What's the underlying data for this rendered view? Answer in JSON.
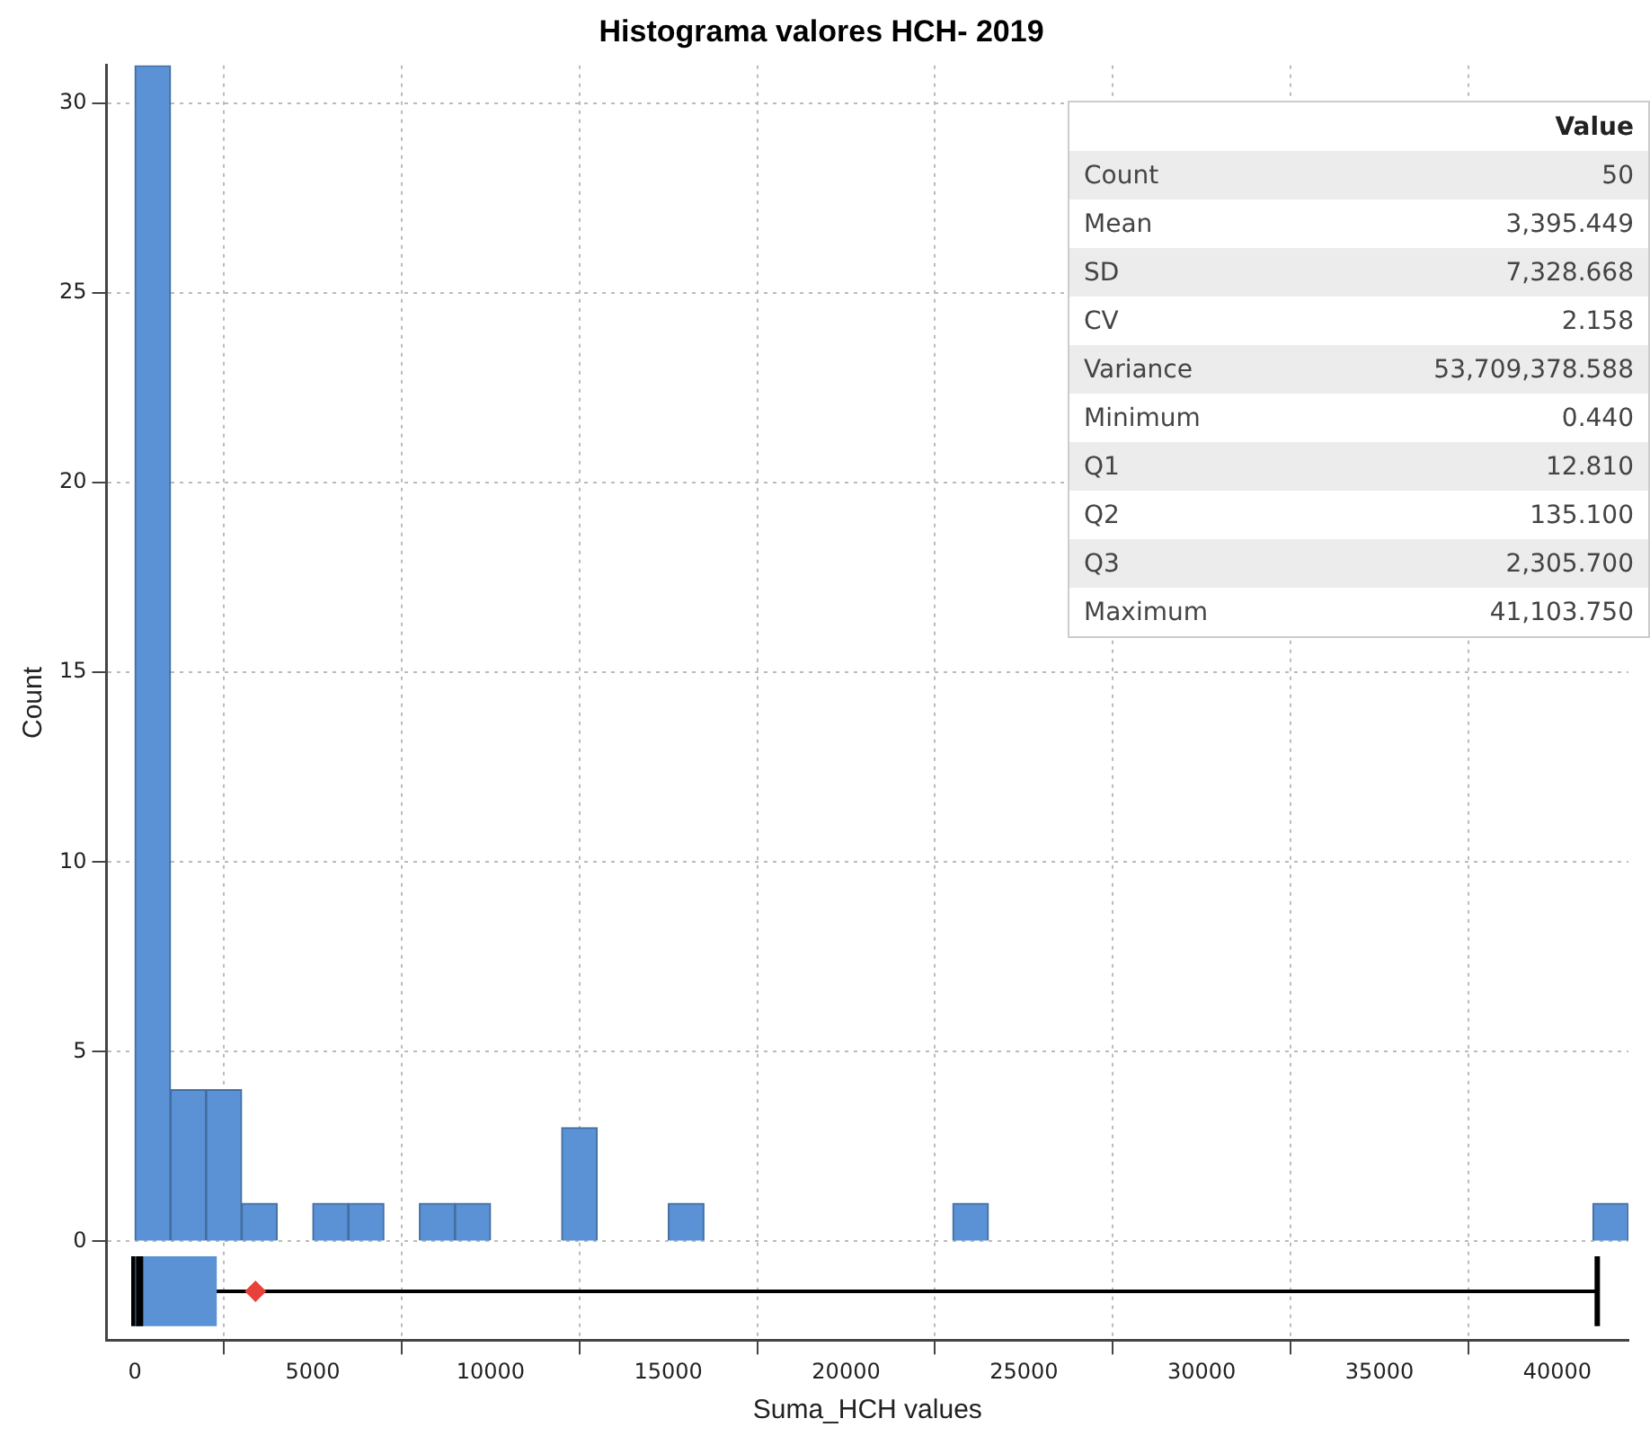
{
  "chart_data": {
    "type": "histogram",
    "title": "Histograma valores HCH- 2019",
    "xlabel": "Suma_HCH values",
    "ylabel": "Count",
    "color": "#5b92d6",
    "bins": [
      0,
      1000,
      2000,
      3000,
      4000,
      5000,
      6000,
      7000,
      8000,
      9000,
      10000,
      11000,
      12000,
      13000,
      14000,
      15000,
      16000,
      17000,
      18000,
      19000,
      20000,
      21000,
      22000,
      23000,
      24000,
      25000,
      26000,
      27000,
      28000,
      29000,
      30000,
      31000,
      32000,
      33000,
      34000,
      35000,
      36000,
      37000,
      38000,
      39000,
      40000,
      41000,
      42000
    ],
    "values": [
      31,
      4,
      4,
      1,
      0,
      1,
      1,
      0,
      1,
      1,
      0,
      0,
      3,
      0,
      0,
      1,
      0,
      0,
      0,
      0,
      0,
      0,
      0,
      1,
      0,
      0,
      0,
      0,
      0,
      0,
      0,
      0,
      0,
      0,
      0,
      0,
      0,
      0,
      0,
      0,
      0,
      1
    ],
    "xlim": [
      -800,
      42000
    ],
    "xticks": [
      0,
      5000,
      10000,
      15000,
      20000,
      25000,
      30000,
      35000,
      40000
    ],
    "ylim": [
      -2.6,
      31
    ],
    "yticks": [
      0,
      5,
      10,
      15,
      20,
      25,
      30
    ],
    "grid": true,
    "legend": false,
    "annotations": [
      "Value",
      "Count",
      "50",
      "Mean",
      "3,395.449",
      "SD",
      "7,328.668",
      "CV",
      "2.158",
      "Variance",
      "53,709,378.588",
      "Minimum",
      "0.440",
      "Q1",
      "12.810",
      "Q2",
      "135.100",
      "Q3",
      "2,305.700",
      "Maximum",
      "41,103.750"
    ]
  }
}
